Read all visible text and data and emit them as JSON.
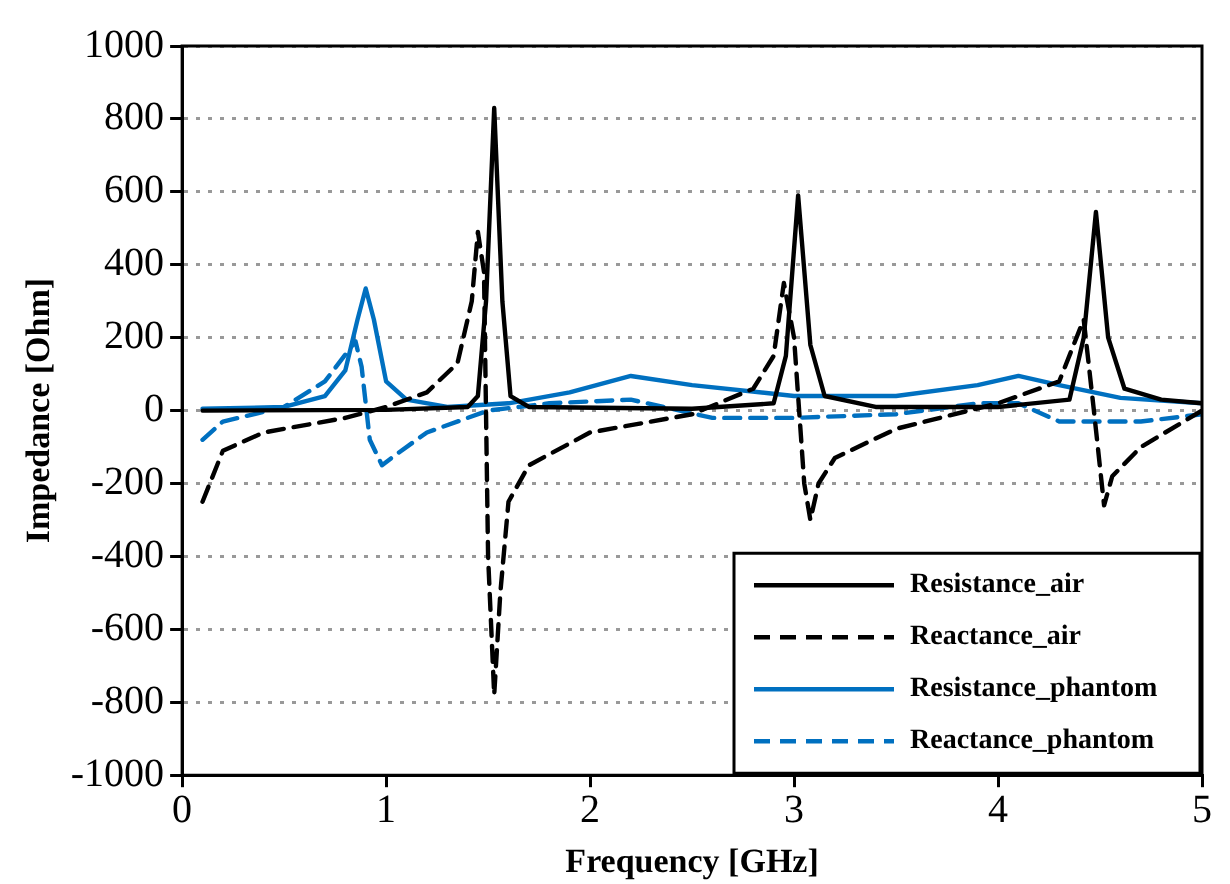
{
  "chart_data": {
    "type": "line",
    "xlabel": "Frequency [GHz]",
    "ylabel": "Impedance [Ohm]",
    "xlim": [
      0,
      5
    ],
    "xticks": [
      0,
      1,
      2,
      3,
      4,
      5
    ],
    "ylim": [
      -1000,
      1000
    ],
    "yticks": [
      -1000,
      -800,
      -600,
      -400,
      -200,
      0,
      200,
      400,
      600,
      800,
      1000
    ],
    "grid": "y",
    "legend": "bottom right",
    "marker": "none",
    "series": [
      {
        "name": "Resistance_air",
        "color": "#000000",
        "line_style": "solid",
        "x": [
          0.1,
          1.0,
          1.4,
          1.45,
          1.49,
          1.53,
          1.57,
          1.61,
          1.7,
          2.5,
          2.9,
          2.96,
          3.02,
          3.08,
          3.15,
          3.4,
          4.0,
          4.35,
          4.42,
          4.48,
          4.54,
          4.62,
          4.8,
          5
        ],
        "values": [
          0,
          2,
          10,
          40,
          300,
          830,
          300,
          40,
          10,
          5,
          20,
          150,
          590,
          180,
          40,
          10,
          10,
          30,
          200,
          545,
          200,
          60,
          30,
          20
        ]
      },
      {
        "name": "Reactance_air",
        "color": "#000000",
        "line_style": "dashed",
        "x": [
          0.1,
          0.2,
          0.4,
          0.8,
          1.0,
          1.2,
          1.35,
          1.42,
          1.45,
          1.48,
          1.5,
          1.53,
          1.56,
          1.6,
          1.7,
          2.0,
          2.5,
          2.8,
          2.9,
          2.95,
          3.0,
          3.05,
          3.08,
          3.12,
          3.2,
          3.5,
          4.0,
          4.3,
          4.42,
          4.47,
          4.52,
          4.56,
          4.7,
          5
        ],
        "values": [
          -250,
          -110,
          -60,
          -20,
          10,
          50,
          130,
          300,
          490,
          380,
          -400,
          -780,
          -500,
          -250,
          -150,
          -60,
          -10,
          60,
          150,
          350,
          200,
          -200,
          -300,
          -200,
          -130,
          -50,
          20,
          80,
          250,
          0,
          -260,
          -180,
          -100,
          0
        ]
      },
      {
        "name": "Resistance_phantom",
        "color": "#0070c0",
        "line_style": "solid",
        "x": [
          0.1,
          0.5,
          0.7,
          0.8,
          0.86,
          0.9,
          0.94,
          1.0,
          1.1,
          1.3,
          1.6,
          1.9,
          2.2,
          2.5,
          3.0,
          3.5,
          3.9,
          4.1,
          4.3,
          4.6,
          5
        ],
        "values": [
          5,
          10,
          40,
          110,
          250,
          335,
          250,
          80,
          30,
          10,
          20,
          50,
          95,
          70,
          40,
          40,
          70,
          95,
          70,
          35,
          20
        ]
      },
      {
        "name": "Reactance_phantom",
        "color": "#0070c0",
        "line_style": "dashed",
        "x": [
          0.1,
          0.2,
          0.5,
          0.7,
          0.85,
          0.88,
          0.92,
          0.98,
          1.05,
          1.2,
          1.5,
          1.8,
          2.2,
          2.6,
          3.0,
          3.5,
          3.9,
          4.1,
          4.3,
          4.7,
          5
        ],
        "values": [
          -80,
          -30,
          10,
          80,
          190,
          120,
          -80,
          -150,
          -120,
          -60,
          0,
          20,
          30,
          -20,
          -20,
          -10,
          20,
          20,
          -30,
          -30,
          -10
        ]
      }
    ]
  }
}
